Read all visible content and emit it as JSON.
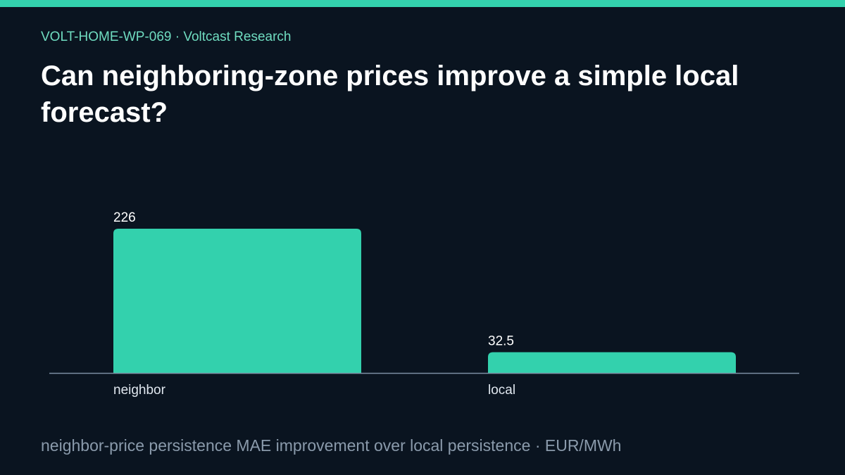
{
  "header": {
    "eyebrow": "VOLT-HOME-WP-069 · Voltcast Research",
    "title": "Can neighboring-zone prices improve a simple local forecast?"
  },
  "footer": {
    "note": "neighbor-price persistence MAE improvement over local persistence · EUR/MWh"
  },
  "chart_data": {
    "type": "bar",
    "categories": [
      "neighbor",
      "local"
    ],
    "values": [
      226,
      32.5
    ],
    "data_labels": [
      "226",
      "32.5"
    ],
    "title": "Can neighboring-zone prices improve a simple local forecast?",
    "xlabel": "",
    "ylabel": "",
    "ylim": [
      0,
      226
    ],
    "grid": false,
    "legend": "none",
    "bar_color": "#33d1ad",
    "baseline_color": "#7d8fa3"
  }
}
